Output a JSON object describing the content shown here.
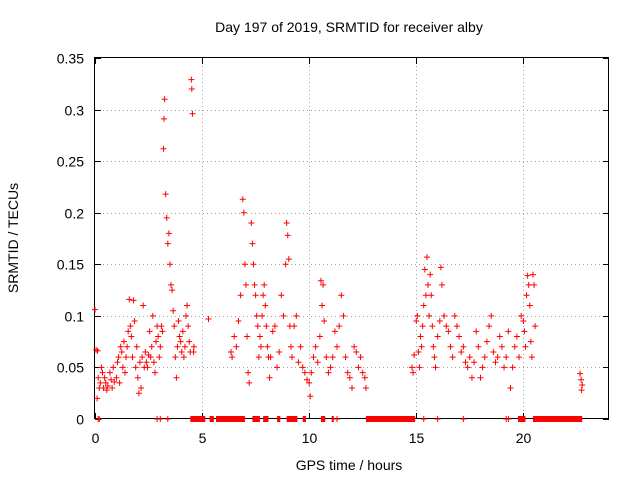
{
  "chart_data": {
    "type": "scatter",
    "title": "Day 197 of 2019, SRMTID for receiver alby",
    "xlabel": "GPS time / hours",
    "ylabel": "SRMTID / TECUs",
    "xlim": [
      0,
      24
    ],
    "ylim": [
      0,
      0.35
    ],
    "grid": true,
    "marker": "+",
    "colors": {
      "series": "#ff0000",
      "grid": "#a0a0a0",
      "axis": "#000000"
    },
    "xticks": [
      {
        "value": 0,
        "label": "0"
      },
      {
        "value": 5,
        "label": "5"
      },
      {
        "value": 10,
        "label": "10"
      },
      {
        "value": 15,
        "label": "15"
      },
      {
        "value": 20,
        "label": "20"
      }
    ],
    "yticks": [
      {
        "value": 0,
        "label": "0"
      },
      {
        "value": 0.05,
        "label": "0.05"
      },
      {
        "value": 0.1,
        "label": "0.1"
      },
      {
        "value": 0.15,
        "label": "0.15"
      },
      {
        "value": 0.2,
        "label": "0.2"
      },
      {
        "value": 0.25,
        "label": "0.25"
      },
      {
        "value": 0.3,
        "label": "0.3"
      },
      {
        "value": 0.35,
        "label": "0.35"
      }
    ],
    "series": [
      {
        "name": "SRMTID",
        "points": [
          [
            0.0,
            0.106
          ],
          [
            0.05,
            0.067
          ],
          [
            0.1,
            0.02
          ],
          [
            0.12,
            0.066
          ],
          [
            0.15,
            0.04
          ],
          [
            0.2,
            0.03
          ],
          [
            0.25,
            0.035
          ],
          [
            0.3,
            0.05
          ],
          [
            0.35,
            0.045
          ],
          [
            0.4,
            0.03
          ],
          [
            0.45,
            0.04
          ],
          [
            0.5,
            0.035
          ],
          [
            0.55,
            0.028
          ],
          [
            0.6,
            0.032
          ],
          [
            0.7,
            0.045
          ],
          [
            0.75,
            0.038
          ],
          [
            0.8,
            0.03
          ],
          [
            0.85,
            0.05
          ],
          [
            0.9,
            0.036
          ],
          [
            1.0,
            0.04
          ],
          [
            1.05,
            0.055
          ],
          [
            1.1,
            0.06
          ],
          [
            1.15,
            0.035
          ],
          [
            1.2,
            0.07
          ],
          [
            1.25,
            0.065
          ],
          [
            1.3,
            0.05
          ],
          [
            1.35,
            0.075
          ],
          [
            1.4,
            0.045
          ],
          [
            1.45,
            0.06
          ],
          [
            1.5,
            0.07
          ],
          [
            1.55,
            0.085
          ],
          [
            1.6,
            0.116
          ],
          [
            1.65,
            0.09
          ],
          [
            1.7,
            0.08
          ],
          [
            1.75,
            0.06
          ],
          [
            1.8,
            0.115
          ],
          [
            1.85,
            0.095
          ],
          [
            1.9,
            0.05
          ],
          [
            1.95,
            0.07
          ],
          [
            2.0,
            0.04
          ],
          [
            2.05,
            0.025
          ],
          [
            2.1,
            0.055
          ],
          [
            2.15,
            0.03
          ],
          [
            2.2,
            0.06
          ],
          [
            2.25,
            0.11
          ],
          [
            2.3,
            0.05
          ],
          [
            2.35,
            0.065
          ],
          [
            2.4,
            0.055
          ],
          [
            2.45,
            0.05
          ],
          [
            2.5,
            0.062
          ],
          [
            2.55,
            0.085
          ],
          [
            2.6,
            0.06
          ],
          [
            2.65,
            0.07
          ],
          [
            2.7,
            0.1
          ],
          [
            2.75,
            0.055
          ],
          [
            2.8,
            0.045
          ],
          [
            2.85,
            0.075
          ],
          [
            2.9,
            0.09
          ],
          [
            2.95,
            0.08
          ],
          [
            3.0,
            0.06
          ],
          [
            3.05,
            0.07
          ],
          [
            3.1,
            0.09
          ],
          [
            3.15,
            0.085
          ],
          [
            3.2,
            0.262
          ],
          [
            3.22,
            0.291
          ],
          [
            3.25,
            0.31
          ],
          [
            3.3,
            0.218
          ],
          [
            3.35,
            0.195
          ],
          [
            3.4,
            0.17
          ],
          [
            3.45,
            0.18
          ],
          [
            3.5,
            0.15
          ],
          [
            3.55,
            0.13
          ],
          [
            3.6,
            0.125
          ],
          [
            3.65,
            0.105
          ],
          [
            3.7,
            0.09
          ],
          [
            3.75,
            0.06
          ],
          [
            3.8,
            0.04
          ],
          [
            3.85,
            0.07
          ],
          [
            3.9,
            0.095
          ],
          [
            3.95,
            0.08
          ],
          [
            4.0,
            0.075
          ],
          [
            4.05,
            0.065
          ],
          [
            4.1,
            0.085
          ],
          [
            4.15,
            0.06
          ],
          [
            4.2,
            0.07
          ],
          [
            4.25,
            0.1
          ],
          [
            4.3,
            0.11
          ],
          [
            4.35,
            0.09
          ],
          [
            4.4,
            0.075
          ],
          [
            4.45,
            0.065
          ],
          [
            4.5,
            0.329
          ],
          [
            4.52,
            0.32
          ],
          [
            4.55,
            0.296
          ],
          [
            4.6,
            0.065
          ],
          [
            4.62,
            0.07
          ],
          [
            5.3,
            0.097
          ],
          [
            6.35,
            0.065
          ],
          [
            6.4,
            0.06
          ],
          [
            6.5,
            0.08
          ],
          [
            6.6,
            0.07
          ],
          [
            6.7,
            0.095
          ],
          [
            6.8,
            0.12
          ],
          [
            6.9,
            0.213
          ],
          [
            6.95,
            0.2
          ],
          [
            7.0,
            0.15
          ],
          [
            7.05,
            0.13
          ],
          [
            7.1,
            0.08
          ],
          [
            7.15,
            0.045
          ],
          [
            7.2,
            0.035
          ],
          [
            7.3,
            0.19
          ],
          [
            7.35,
            0.17
          ],
          [
            7.4,
            0.15
          ],
          [
            7.45,
            0.13
          ],
          [
            7.5,
            0.12
          ],
          [
            7.55,
            0.1
          ],
          [
            7.6,
            0.09
          ],
          [
            7.65,
            0.06
          ],
          [
            7.7,
            0.08
          ],
          [
            7.75,
            0.07
          ],
          [
            7.8,
            0.1
          ],
          [
            7.85,
            0.12
          ],
          [
            7.9,
            0.13
          ],
          [
            7.95,
            0.11
          ],
          [
            8.0,
            0.09
          ],
          [
            8.05,
            0.07
          ],
          [
            8.1,
            0.06
          ],
          [
            8.15,
            0.04
          ],
          [
            8.2,
            0.06
          ],
          [
            8.3,
            0.085
          ],
          [
            8.4,
            0.09
          ],
          [
            8.5,
            0.05
          ],
          [
            8.6,
            0.065
          ],
          [
            8.7,
            0.12
          ],
          [
            8.8,
            0.1
          ],
          [
            8.9,
            0.15
          ],
          [
            8.95,
            0.19
          ],
          [
            9.0,
            0.178
          ],
          [
            9.05,
            0.155
          ],
          [
            9.1,
            0.09
          ],
          [
            9.15,
            0.07
          ],
          [
            9.2,
            0.06
          ],
          [
            9.3,
            0.09
          ],
          [
            9.4,
            0.1
          ],
          [
            9.5,
            0.055
          ],
          [
            9.6,
            0.07
          ],
          [
            9.7,
            0.05
          ],
          [
            9.8,
            0.045
          ],
          [
            9.9,
            0.038
          ],
          [
            10.0,
            0.035
          ],
          [
            10.05,
            0.022
          ],
          [
            10.1,
            0.045
          ],
          [
            10.2,
            0.06
          ],
          [
            10.3,
            0.07
          ],
          [
            10.4,
            0.055
          ],
          [
            10.5,
            0.08
          ],
          [
            10.55,
            0.134
          ],
          [
            10.6,
            0.11
          ],
          [
            10.65,
            0.13
          ],
          [
            10.7,
            0.095
          ],
          [
            10.8,
            0.06
          ],
          [
            10.9,
            0.045
          ],
          [
            11.0,
            0.05
          ],
          [
            11.1,
            0.06
          ],
          [
            11.2,
            0.085
          ],
          [
            11.3,
            0.07
          ],
          [
            11.4,
            0.09
          ],
          [
            11.5,
            0.12
          ],
          [
            11.6,
            0.1
          ],
          [
            11.7,
            0.06
          ],
          [
            11.8,
            0.045
          ],
          [
            11.9,
            0.04
          ],
          [
            12.0,
            0.03
          ],
          [
            12.1,
            0.07
          ],
          [
            12.2,
            0.065
          ],
          [
            12.3,
            0.05
          ],
          [
            12.4,
            0.06
          ],
          [
            12.5,
            0.045
          ],
          [
            12.6,
            0.04
          ],
          [
            12.65,
            0.03
          ],
          [
            14.8,
            0.05
          ],
          [
            14.85,
            0.045
          ],
          [
            14.9,
            0.062
          ],
          [
            15.0,
            0.095
          ],
          [
            15.05,
            0.1
          ],
          [
            15.1,
            0.065
          ],
          [
            15.15,
            0.05
          ],
          [
            15.2,
            0.08
          ],
          [
            15.25,
            0.07
          ],
          [
            15.3,
            0.09
          ],
          [
            15.35,
            0.11
          ],
          [
            15.4,
            0.145
          ],
          [
            15.45,
            0.12
          ],
          [
            15.5,
            0.157
          ],
          [
            15.55,
            0.13
          ],
          [
            15.6,
            0.1
          ],
          [
            15.65,
            0.14
          ],
          [
            15.7,
            0.12
          ],
          [
            15.75,
            0.09
          ],
          [
            15.8,
            0.07
          ],
          [
            15.85,
            0.06
          ],
          [
            15.9,
            0.05
          ],
          [
            16.0,
            0.08
          ],
          [
            16.1,
            0.095
          ],
          [
            16.15,
            0.147
          ],
          [
            16.2,
            0.13
          ],
          [
            16.3,
            0.1
          ],
          [
            16.4,
            0.09
          ],
          [
            16.5,
            0.085
          ],
          [
            16.6,
            0.07
          ],
          [
            16.7,
            0.06
          ],
          [
            16.8,
            0.1
          ],
          [
            16.9,
            0.09
          ],
          [
            17.0,
            0.08
          ],
          [
            17.1,
            0.065
          ],
          [
            17.2,
            0.07
          ],
          [
            17.3,
            0.055
          ],
          [
            17.4,
            0.05
          ],
          [
            17.5,
            0.06
          ],
          [
            17.6,
            0.04
          ],
          [
            17.7,
            0.055
          ],
          [
            17.8,
            0.085
          ],
          [
            17.9,
            0.07
          ],
          [
            18.0,
            0.04
          ],
          [
            18.1,
            0.05
          ],
          [
            18.2,
            0.06
          ],
          [
            18.3,
            0.075
          ],
          [
            18.4,
            0.09
          ],
          [
            18.5,
            0.1
          ],
          [
            18.6,
            0.065
          ],
          [
            18.7,
            0.055
          ],
          [
            18.8,
            0.06
          ],
          [
            18.9,
            0.08
          ],
          [
            19.0,
            0.07
          ],
          [
            19.1,
            0.05
          ],
          [
            19.2,
            0.06
          ],
          [
            19.3,
            0.085
          ],
          [
            19.4,
            0.03
          ],
          [
            19.5,
            0.05
          ],
          [
            19.6,
            0.07
          ],
          [
            19.7,
            0.08
          ],
          [
            19.8,
            0.06
          ],
          [
            19.9,
            0.1
          ],
          [
            20.0,
            0.095
          ],
          [
            20.05,
            0.085
          ],
          [
            20.1,
            0.07
          ],
          [
            20.15,
            0.12
          ],
          [
            20.2,
            0.139
          ],
          [
            20.25,
            0.13
          ],
          [
            20.3,
            0.11
          ],
          [
            20.35,
            0.075
          ],
          [
            20.4,
            0.06
          ],
          [
            20.45,
            0.14
          ],
          [
            20.5,
            0.13
          ],
          [
            20.55,
            0.09
          ],
          [
            22.65,
            0.044
          ],
          [
            22.7,
            0.038
          ],
          [
            22.72,
            0.028
          ],
          [
            22.75,
            0.033
          ],
          [
            0.15,
            0.0
          ],
          [
            0.2,
            0.0
          ],
          [
            2.9,
            0.0
          ],
          [
            3.05,
            0.0
          ],
          [
            3.4,
            0.0
          ],
          [
            11.3,
            0.0
          ],
          [
            15.35,
            0.0
          ],
          [
            16.0,
            0.0
          ],
          [
            17.2,
            0.0
          ],
          [
            19.2,
            0.0
          ],
          [
            19.3,
            0.0
          ]
        ]
      }
    ],
    "zero_bars": [
      [
        4.45,
        5.15
      ],
      [
        5.35,
        5.55
      ],
      [
        5.65,
        7.0
      ],
      [
        7.35,
        7.7
      ],
      [
        7.85,
        8.1
      ],
      [
        8.5,
        8.65
      ],
      [
        8.95,
        9.45
      ],
      [
        9.7,
        9.85
      ],
      [
        10.55,
        10.75
      ],
      [
        11.05,
        11.15
      ],
      [
        12.65,
        14.95
      ],
      [
        19.75,
        20.1
      ],
      [
        20.45,
        22.75
      ]
    ]
  }
}
